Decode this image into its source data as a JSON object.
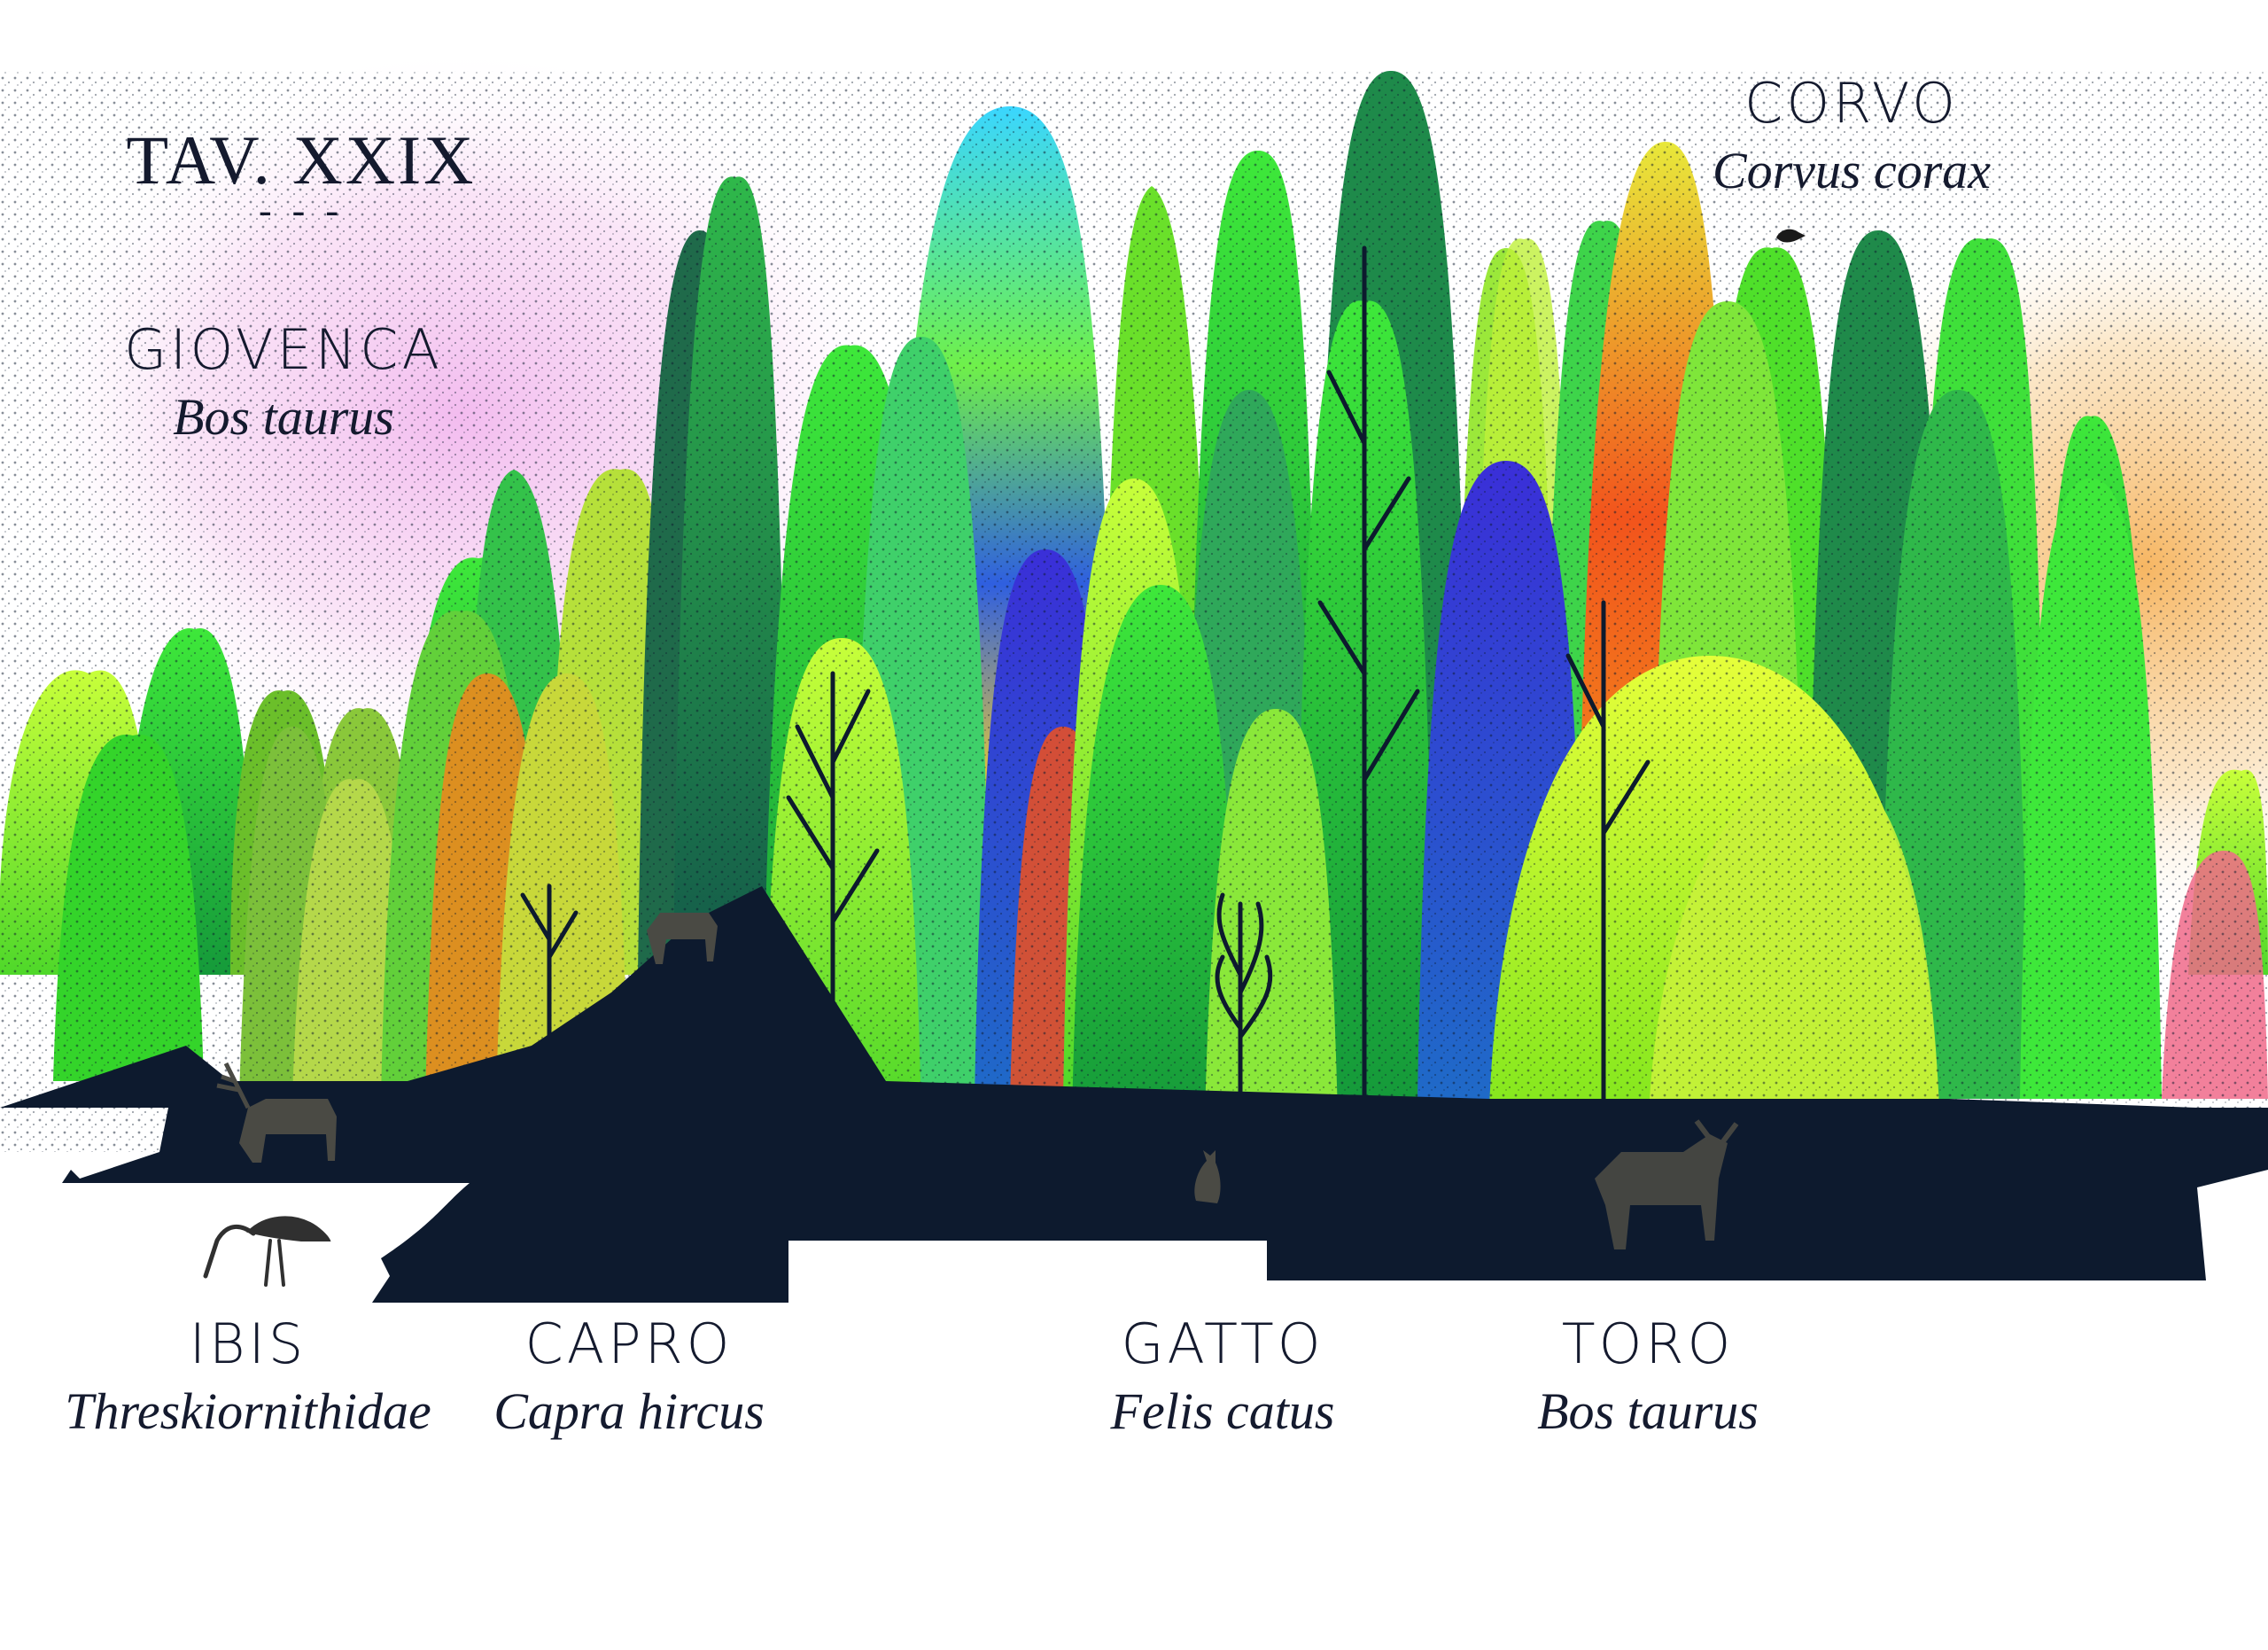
{
  "plate": {
    "number": "TAV. XXIX",
    "rule": "- - -"
  },
  "labels": {
    "giovenca": {
      "common": "GIOVENCA",
      "latin": "Bos taurus"
    },
    "corvo": {
      "common": "CORVO",
      "latin": "Corvus corax"
    },
    "ibis": {
      "common": "IBIS",
      "latin": "Threskiornithidae"
    },
    "capro": {
      "common": "CAPRO",
      "latin": "Capra hircus"
    },
    "gatto": {
      "common": "GATTO",
      "latin": "Felis catus"
    },
    "toro": {
      "common": "TORO",
      "latin": "Bos taurus"
    }
  },
  "palette": {
    "ground": "#0d1a2e",
    "sky_pink": "#f2c6ee",
    "sky_orange": "#f7c98a",
    "lime": "#9cf21c",
    "green": "#27c837",
    "blue": "#2c3fc8",
    "orange": "#f26e1c",
    "ink": "#141a2e"
  }
}
